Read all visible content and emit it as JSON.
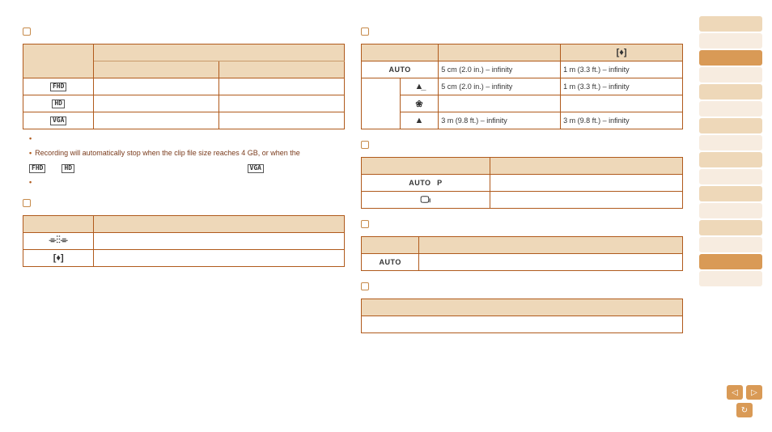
{
  "colors": {
    "accent": "#b05a1c",
    "header_bg": "#eed8b9",
    "sidebar_light": "#f7ece0",
    "sidebar_mid": "#eed8b9",
    "sidebar_dark": "#d99a56",
    "nav_btn": "#d99a56"
  },
  "left": {
    "table1": {
      "row1": "FHD",
      "row2": "HD",
      "row3": "VGA"
    },
    "note1": "Recording will automatically stop when the clip file size reaches 4 GB, or when the",
    "icons_line": {
      "a": "FHD",
      "b": "HD",
      "c": "VGA"
    },
    "table2": {
      "r1_icon": "⌯⁝⁝⌯",
      "r2_icon": "[♦]"
    }
  },
  "right": {
    "range_table": {
      "row1": {
        "label": "AUTO",
        "c1": "5 cm (2.0 in.) – infinity",
        "c2": "1 m (3.3 ft.) – infinity"
      },
      "row2": {
        "icon": "▲̲",
        "c1": "5 cm (2.0 in.) – infinity",
        "c2": "1 m (3.3 ft.) – infinity"
      },
      "row3": {
        "icon": "❀"
      },
      "row4": {
        "icon": "▲",
        "c1": "3 m (9.8 ft.) – infinity",
        "c2": "3 m (9.8 ft.) – infinity"
      },
      "hdr_c2_icon": "[♦]"
    },
    "table2": {
      "r1": {
        "a": "AUTO",
        "b": "P"
      },
      "r2": {
        "icon": "🖵ₗ"
      }
    },
    "table3": {
      "r1": "AUTO"
    }
  },
  "sidebar_pattern": [
    "mid",
    "light",
    "dark",
    "light",
    "mid",
    "light",
    "mid",
    "light",
    "mid",
    "light",
    "mid",
    "light",
    "mid",
    "light",
    "dark",
    "light"
  ],
  "nav": {
    "prev": "◁",
    "next": "▷",
    "return": "↻"
  }
}
